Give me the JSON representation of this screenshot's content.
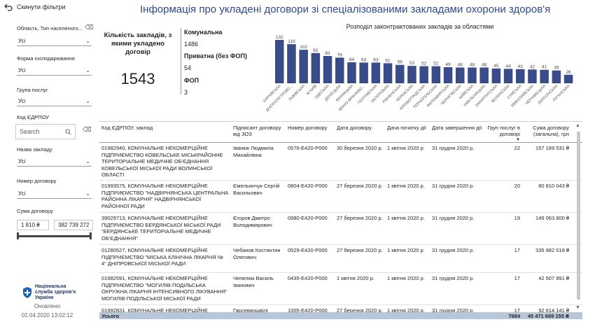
{
  "sidebar": {
    "reset_label": "Скинути фільтри",
    "filters": [
      {
        "label": "Область, Тип населеного...",
        "value": "Усі"
      },
      {
        "label": "Форма господарювання",
        "value": "Усі"
      },
      {
        "label": "Група послуг",
        "value": "Усі"
      }
    ],
    "code_label": "Код ЄДРПОУ",
    "search_placeholder": "Search",
    "filters2": [
      {
        "label": "Назва закладу",
        "value": "Усі"
      },
      {
        "label": "Номер договору",
        "value": "Усі"
      }
    ],
    "sum_label": "Сума договору",
    "sum_min": "1 810 ₴",
    "sum_max": "382 739 272",
    "slider_range": [
      0,
      1
    ],
    "logo_text": "Національна служба здоров'я України",
    "updated_label": "Оновлено",
    "updated_value": "02.04.2020 13:02:12"
  },
  "header": {
    "title": "Інформація про укладені договори зі спеціалізованими закладами охорони здоров'я"
  },
  "kpi": {
    "main_label": "Кількість закладів, з якими укладено договір",
    "main_value": "1543",
    "items": [
      {
        "label": "Комунальна",
        "value": "1486"
      },
      {
        "label": "Приватна (без ФОП)",
        "value": "54"
      },
      {
        "label": "ФОП",
        "value": "3"
      }
    ]
  },
  "chart_data": {
    "type": "bar",
    "title": "Розподіл законтрактованих закладів за областями",
    "categories": [
      "ХАРКІВСЬКА",
      "ДНІПРОПЕТРОВС...",
      "ЛЬВІВСЬКА",
      "М.КИЇВ",
      "ОДЕСЬКА",
      "ДОНЕЦЬКА",
      "ВІННИЦЬКА",
      "ІВАНО-ФРАНКІВС...",
      "ПОЛТАВСЬКА",
      "ЗАПОРІЗЬКА",
      "РІВНЕНСЬКА",
      "ЧЕРКАСЬКА",
      "КІРОВОГРАДСЬКА",
      "ТЕРНОПІЛЬСЬКА",
      "ЖИТОМИРСЬКА",
      "ЧЕРНІГІВСЬКА",
      "КИЇВСЬКА",
      "ХМЕЛЬНИЦЬКА",
      "ЗАКАРПАТСЬКА",
      "ВОЛИНСЬКА",
      "СУМСЬКА",
      "МИКОЛАЇВСЬКА",
      "ЧЕРНІВЕЦЬКА",
      "ХЕРСОНСЬКА",
      "ЛУГАНСЬКА"
    ],
    "values": [
      132,
      119,
      102,
      92,
      83,
      78,
      64,
      63,
      63,
      61,
      56,
      53,
      52,
      52,
      49,
      48,
      48,
      48,
      45,
      44,
      43,
      42,
      41,
      39,
      26
    ],
    "ylim": [
      0,
      132
    ],
    "color": "#3a4b8a"
  },
  "table": {
    "headers": [
      "Код ЄДРПОУ, заклад",
      "Підписант договору від ЗОЗ",
      "Номер договору",
      "Дата договору",
      "Дача початку дії",
      "Дата завершення дії",
      "Груп послуг в договорі",
      "Сума договору (загальна), грн"
    ],
    "rows": [
      [
        "01982940, КОМУНАЛЬНЕ НЕКОМЕРЦІЙНЕ ПІДПРИЄМСТВО КОВЕЛЬСЬКЕ МІСЬКРАЙОННЕ ТЕРИТОРІАЛЬНЕ МЕДИЧНЕ ОБ'ЄДНАННЯ КОВЕЛЬСЬКОЇ МІСЬКОЇ РАДИ ВОЛИНСЬКОЇ ОБЛАСТІ",
        "Іванюк Людмила Михайлівна",
        "0576-E420-P000",
        "30 березня 2020 р.",
        "1 квітня 2020 р.",
        "31 грудня 2020 р.",
        "22",
        "157 189 531 ₴"
      ],
      [
        "01993575, КОМУНАЛЬНЕ НЕКОМЕРЦІЙНЕ ПІДПРИЄМСТВО \"НАДВІРНЯНСЬКА ЦЕНТРАЛЬНА РАЙОННА ЛІКАРНЯ\" НАДВІРНЯНСЬКОЇ РАЙОННОЇ РАДИ",
        "Ємельянчук Сергій Васильович",
        "0804-E420-P000",
        "27 березня 2020 р.",
        "1 квітня 2020 р.",
        "31 грудня 2020 р.",
        "20",
        "80 810 043 ₴"
      ],
      [
        "39029713, КОМУНАЛЬНЕ НЕКОМЕРЦІЙНЕ ПІДПРИЄМСТВО БЕРДЯНСЬКОЇ МІСЬКОЇ РАДИ \"БЕРДЯНСЬКЕ ТЕРИТОРІАЛЬНЕ МЕДИЧНЕ ОБ'ЄДНАННЯ\"",
        "Єгоров Дмитро Володимирович",
        "0980-E420-P000",
        "27 березня 2020 р.",
        "1 квітня 2020 р.",
        "31 грудня 2020 р.",
        "19",
        "149 063 800 ₴"
      ],
      [
        "01280527, КОМУНАЛЬНЕ НЕКОМЕРЦІЙНЕ ПІДПРИЄМСТВО \"МІСЬКА КЛІНІЧНА ЛІКАРНЯ № 4\" ДНІПРОВСЬКОЇ МІСЬКОЇ РАДИ",
        "Чебанов Костянтин Олегович",
        "0529-E420-P000",
        "27 березня 2020 р.",
        "1 квітня 2020 р.",
        "31 грудня 2020 р.",
        "17",
        "335 982 018 ₴"
      ],
      [
        "01982591, КОМУНАЛЬНЕ НЕКОМЕРЦІЙНЕ ПІДПРИЄМСТВО \"МОГИЛІВ-ПОДІЛЬСЬКА ОКРУЖНА ЛІКАРНЯ ІНТЕНСИВНОГО ЛІКУВАННЯ\" МОГИЛІВ-ПОДІЛЬСЬКОЇ МІСЬКОЇ РАДИ",
        "Чепелюк Василь Іванович",
        "0435-E420-P000",
        "1 квітня 2020 р.",
        "1 квітня 2020 р.",
        "31 грудня 2020 р.",
        "17",
        "42 507 991 ₴"
      ],
      [
        "01992831, КОМУНАЛЬНЕ НЕКОМЕРЦІЙНЕ",
        "Гарсеваншвілі",
        "1005-E420-P000",
        "27 березня 2020 р.",
        "1 квітня 2020 р.",
        "31 грудня 2020 р.",
        "17",
        "92 614 141 ₴"
      ]
    ],
    "total_label": "Усього",
    "total_groups": "7684",
    "total_sum": "45 471 669 155 ₴"
  }
}
